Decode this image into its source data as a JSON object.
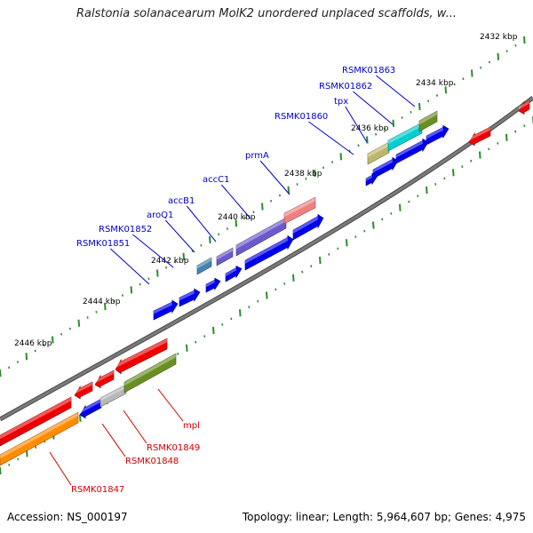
{
  "title": "Ralstonia solanacearum MolK2 unordered unplaced scaffolds, w...",
  "footer": {
    "accession": "Accession: NS_000197",
    "topology": "Topology: linear; Length: 5,964,607 bp; Genes: 4,975"
  },
  "colors": {
    "backbone": "#7a7a7a",
    "tick_dash": "#2e8b2e",
    "forward_label": "#0000cc",
    "reverse_label": "#cc0000",
    "blue": "#0000ee",
    "red": "#ee0000"
  },
  "ticks": [
    "2432 kbp",
    "2434 kbp",
    "2436 kbp",
    "2438 kbp",
    "2440 kbp",
    "2442 kbp",
    "2444 kbp",
    "2446 kbp"
  ],
  "forward_labels": [
    "RSMK01863",
    "RSMK01862",
    "tpx",
    "RSMK01860",
    "prmA",
    "accC1",
    "accB1",
    "aroQ1",
    "RSMK01852",
    "RSMK01851"
  ],
  "reverse_labels": [
    "mpl",
    "RSMK01849",
    "RSMK01848",
    "RSMK01847"
  ]
}
